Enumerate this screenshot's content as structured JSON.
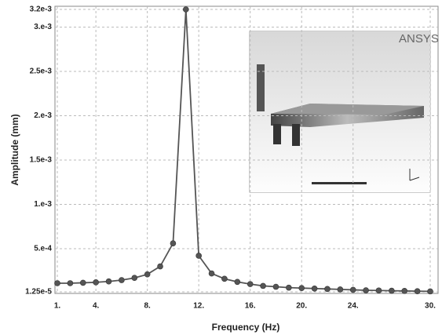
{
  "chart_data": {
    "type": "line",
    "xlabel": "Frequency (Hz)",
    "ylabel": "Amplitude (mm)",
    "x": [
      1,
      2,
      3,
      4,
      5,
      6,
      7,
      8,
      9,
      10,
      11,
      12,
      13,
      14,
      15,
      16,
      17,
      18,
      19,
      20,
      21,
      22,
      23,
      24,
      25,
      26,
      27,
      28,
      29,
      30
    ],
    "series": [
      {
        "color": "#555555",
        "values": [
          0.00011,
          0.00011,
          0.000115,
          0.00012,
          0.00013,
          0.000145,
          0.00017,
          0.00021,
          0.0003,
          0.00056,
          0.0032,
          0.00042,
          0.00022,
          0.00016,
          0.000125,
          0.0001,
          8e-05,
          7e-05,
          6e-05,
          5.5e-05,
          5e-05,
          4.5e-05,
          4e-05,
          3.5e-05,
          3e-05,
          2.8e-05,
          2.5e-05,
          2.3e-05,
          2e-05,
          1.8e-05
        ]
      }
    ],
    "xlim": [
      1,
      30
    ],
    "ylim": [
      1.25e-05,
      0.0032
    ],
    "xticks": [
      {
        "value": 1,
        "label": "1."
      },
      {
        "value": 4,
        "label": "4."
      },
      {
        "value": 8,
        "label": "8."
      },
      {
        "value": 12,
        "label": "12."
      },
      {
        "value": 16,
        "label": "16."
      },
      {
        "value": 20,
        "label": "20."
      },
      {
        "value": 24,
        "label": "24."
      },
      {
        "value": 30,
        "label": "30."
      }
    ],
    "yticks": [
      {
        "value": 1.25e-05,
        "label": "1.25e-5"
      },
      {
        "value": 0.0005,
        "label": "5.e-4"
      },
      {
        "value": 0.001,
        "label": "1.e-3"
      },
      {
        "value": 0.0015,
        "label": "1.5e-3"
      },
      {
        "value": 0.002,
        "label": "2.e-3"
      },
      {
        "value": 0.0025,
        "label": "2.5e-3"
      },
      {
        "value": 0.003,
        "label": "3.e-3"
      },
      {
        "value": 0.0032,
        "label": "3.2e-3"
      }
    ],
    "grid": true
  },
  "inset": {
    "logo": "ANSYS"
  }
}
